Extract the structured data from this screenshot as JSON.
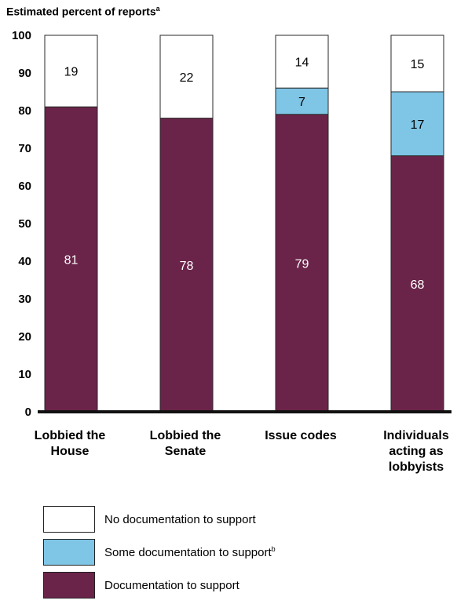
{
  "chart_data": {
    "type": "bar",
    "stacked": true,
    "ylabel": "Estimated percent of reports",
    "ylabel_note": "a",
    "ylim": [
      0,
      100
    ],
    "yticks": [
      0,
      10,
      20,
      30,
      40,
      50,
      60,
      70,
      80,
      90,
      100
    ],
    "categories": [
      "Lobbied the\nHouse",
      "Lobbied the\nSenate",
      "Issue codes",
      "Individuals\nacting as\nlobbyists"
    ],
    "series": [
      {
        "name": "Documentation to support",
        "note": "",
        "color": "#6b2449",
        "values": [
          81,
          78,
          79,
          68
        ],
        "value_labels": [
          "81",
          "78",
          "79",
          "68"
        ]
      },
      {
        "name": "Some documentation to support",
        "note": "b",
        "color": "#7fc5e6",
        "values": [
          0,
          0,
          7,
          17
        ],
        "value_labels": [
          "",
          "",
          "7",
          "17"
        ]
      },
      {
        "name": "No documentation to support",
        "note": "",
        "color": "#ffffff",
        "values": [
          19,
          22,
          14,
          15
        ],
        "value_labels": [
          "19",
          "22",
          "14",
          "15"
        ]
      }
    ],
    "legend": {
      "placement": "bottom",
      "order": [
        2,
        1,
        0
      ]
    }
  }
}
